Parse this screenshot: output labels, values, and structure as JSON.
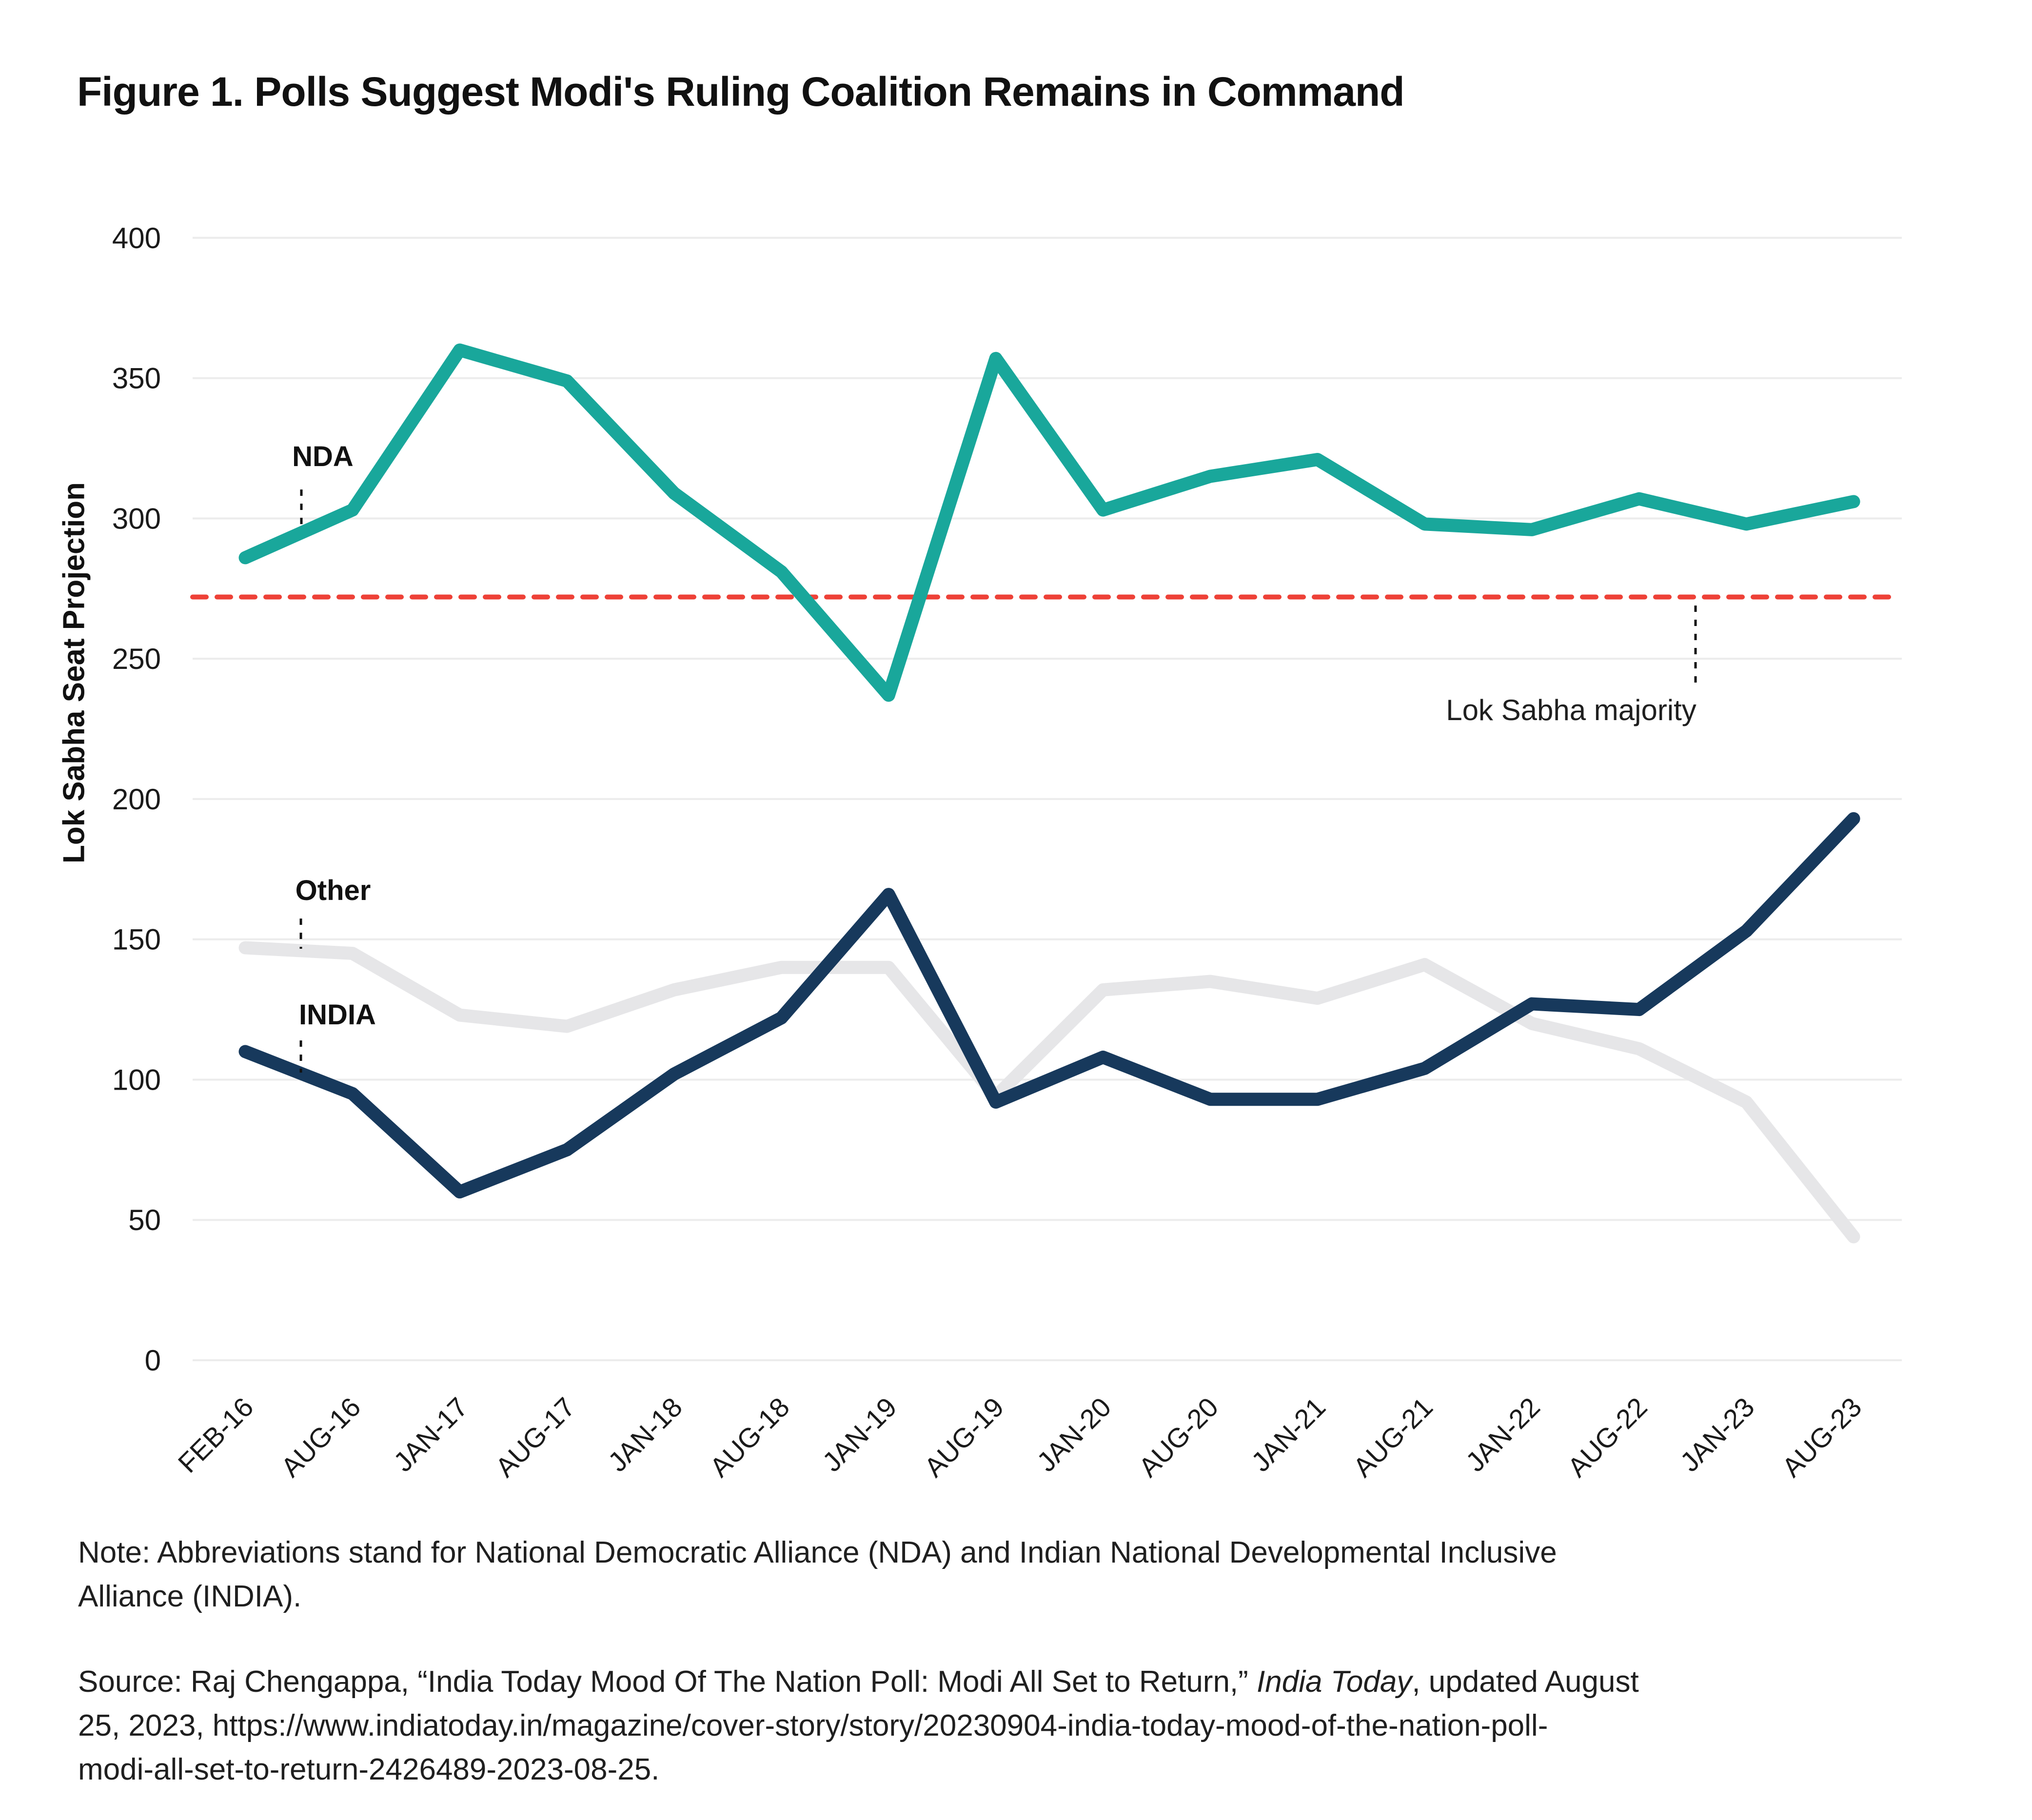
{
  "figure": {
    "title": "Figure 1. Polls Suggest Modi's Ruling Coalition Remains in Command",
    "note_line1": "Note: Abbreviations stand for National Democratic Alliance (NDA) and Indian National Developmental Inclusive",
    "note_line2": "Alliance (INDIA).",
    "source_line1_pre": "Source: Raj Chengappa, “India Today Mood Of The Nation Poll: Modi All Set to Return,” ",
    "source_line1_italic": "India Today",
    "source_line1_post": ", updated August",
    "source_line2": "25, 2023, https://www.indiatoday.in/magazine/cover-story/story/20230904-india-today-mood-of-the-nation-poll-",
    "source_line3": "modi-all-set-to-return-2426489-2023-08-25."
  },
  "chart_data": {
    "type": "line",
    "title": "Figure 1. Polls Suggest Modi's Ruling Coalition Remains in Command",
    "xlabel": "",
    "ylabel": "Lok Sabha Seat Projection",
    "ylim": [
      0,
      400
    ],
    "y_ticks": [
      0,
      50,
      100,
      150,
      200,
      250,
      300,
      350,
      400
    ],
    "grid": "horizontal",
    "legend": "inline-annotations",
    "x_tick_rotation": 45,
    "categories": [
      "FEB-16",
      "AUG-16",
      "JAN-17",
      "AUG-17",
      "JAN-18",
      "AUG-18",
      "JAN-19",
      "AUG-19",
      "JAN-20",
      "AUG-20",
      "JAN-21",
      "AUG-21",
      "JAN-22",
      "AUG-22",
      "JAN-23",
      "AUG-23"
    ],
    "series": [
      {
        "name": "NDA",
        "color": "#19A79B",
        "values": [
          286,
          303,
          360,
          349,
          309,
          281,
          237,
          357,
          303,
          315,
          321,
          298,
          296,
          307,
          298,
          306
        ]
      },
      {
        "name": "INDIA",
        "color": "#17395C",
        "values": [
          110,
          95,
          60,
          75,
          102,
          122,
          166,
          92,
          108,
          93,
          93,
          104,
          127,
          125,
          153,
          193
        ]
      },
      {
        "name": "Other",
        "color": "#E6E6E8",
        "values": [
          147,
          145,
          123,
          119,
          132,
          140,
          140,
          94,
          132,
          135,
          129,
          141,
          120,
          111,
          92,
          44
        ]
      }
    ],
    "reference_line": {
      "label": "Lok Sabha majority",
      "value": 272,
      "color": "#EE4137",
      "style": "dashed"
    },
    "colors": {
      "grid": "#ECECEC",
      "tick_text": "#1a1a1a",
      "annotation_line": "#111111"
    }
  }
}
